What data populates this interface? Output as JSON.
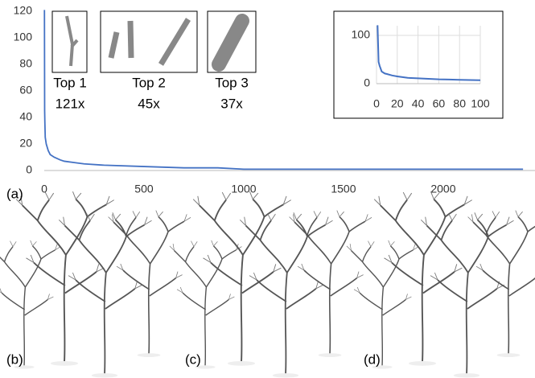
{
  "chart_data": [
    {
      "type": "line",
      "x": [
        1,
        2,
        3,
        5,
        10,
        20,
        30,
        50,
        80,
        100,
        150,
        200,
        300,
        500,
        700,
        870,
        1000,
        1500,
        2000,
        2400
      ],
      "values": [
        121,
        45,
        37,
        25,
        20,
        15,
        12,
        10,
        8,
        7,
        6,
        5,
        4,
        3,
        2,
        2,
        1,
        1,
        1,
        1
      ],
      "color": "#4472c4",
      "xlim": [
        0,
        2460
      ],
      "xticks": [
        0,
        500,
        1000,
        1500,
        2000
      ],
      "ylim": [
        0,
        120
      ],
      "yticks": [
        0,
        20,
        40,
        60,
        80,
        100,
        120
      ],
      "grid": false,
      "annotations": [
        {
          "label": "Top 1",
          "count": "121x"
        },
        {
          "label": "Top 2",
          "count": "45x"
        },
        {
          "label": "Top 3",
          "count": "37x"
        }
      ]
    },
    {
      "type": "line",
      "x": [
        1,
        2,
        3,
        5,
        8,
        10,
        15,
        20,
        30,
        40,
        50,
        60,
        70,
        80,
        90,
        100
      ],
      "values": [
        121,
        45,
        37,
        25,
        21,
        20,
        17,
        15,
        12,
        11,
        10,
        9,
        8.5,
        8,
        7.5,
        7
      ],
      "color": "#4472c4",
      "xlim": [
        0,
        100
      ],
      "xticks": [
        0,
        20,
        40,
        60,
        80,
        100
      ],
      "ylim": [
        0,
        120
      ],
      "yticks": [
        0,
        100
      ],
      "grid": true
    }
  ],
  "panel_labels": [
    "(a)",
    "(b)",
    "(c)",
    "(d)"
  ]
}
